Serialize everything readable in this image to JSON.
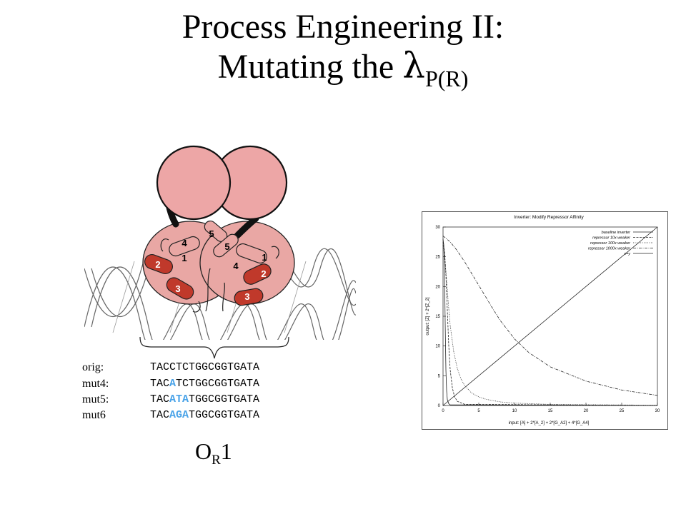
{
  "slide": {
    "title_line1": "Process Engineering II:",
    "title_line2_text": "Mutating the ",
    "title_line2_symbol": "λ",
    "title_line2_subscript": "P(R)"
  },
  "protein_figure": {
    "helix_labels": [
      "5",
      "5",
      "1",
      "1",
      "4",
      "4",
      "2",
      "2",
      "3",
      "3"
    ],
    "colors": {
      "domain_pink": "#e9a7a4",
      "helix_red": "#c0392b",
      "outline": "#222222"
    }
  },
  "sequences": [
    {
      "label": "orig:",
      "pre": "TACCTCTGGCGGTGATA",
      "mut": "",
      "post": ""
    },
    {
      "label": "mut4:",
      "pre": "TAC",
      "mut": "A",
      "post": "TCTGGCGGTGATA"
    },
    {
      "label": "mut5:",
      "pre": "TAC",
      "mut": "ATA",
      "post": "TGGCGGTGATA"
    },
    {
      "label": "mut6",
      "pre": "TAC",
      "mut": "AGA",
      "post": "TGGCGGTGATA"
    }
  ],
  "operator_label": {
    "main": "O",
    "sub": "R",
    "num": "1"
  },
  "highlight_color": "#4aa3e8",
  "chart_data": {
    "type": "line",
    "title": "Inverter: Modify Repressor Affinity",
    "xlabel": "input: [A] + 2*[A_2] + 2*[G_A2] + 4*[G_A4]",
    "ylabel": "output: [Z] + 2*[Z_2]",
    "xlim": [
      0,
      30
    ],
    "ylim": [
      0,
      30
    ],
    "xticks": [
      0,
      5,
      10,
      15,
      20,
      25,
      30
    ],
    "yticks": [
      0,
      5,
      10,
      15,
      20,
      25,
      30
    ],
    "grid": false,
    "legend_position": "top-right",
    "series": [
      {
        "name": "baseline inverter",
        "x": [
          0,
          0.1,
          0.2,
          0.3,
          0.4,
          0.5,
          0.6,
          0.8,
          1.0,
          30
        ],
        "y": [
          28,
          27,
          23,
          14,
          6,
          2.5,
          1,
          0.3,
          0.1,
          0
        ]
      },
      {
        "name": "repressor  10x weaker",
        "x": [
          0,
          0.2,
          0.4,
          0.6,
          0.8,
          1.0,
          1.3,
          1.6,
          2.0,
          3.0,
          30
        ],
        "y": [
          27.5,
          26,
          22,
          16,
          10,
          6,
          3,
          1.5,
          0.7,
          0.2,
          0
        ]
      },
      {
        "name": "repressor  100x weaker",
        "x": [
          0,
          0.25,
          0.5,
          0.75,
          1,
          1.5,
          2,
          2.5,
          3,
          4,
          5,
          6,
          8,
          10,
          15,
          30
        ],
        "y": [
          27,
          25,
          21,
          17,
          13.5,
          9,
          6.2,
          4.5,
          3.4,
          2.1,
          1.45,
          1.05,
          0.6,
          0.4,
          0.18,
          0.05
        ]
      },
      {
        "name": "repressor 1000x weaker",
        "x": [
          0,
          1,
          2,
          3,
          4,
          5,
          6,
          7,
          8,
          10,
          12,
          15,
          20,
          25,
          30
        ],
        "y": [
          28.5,
          27.5,
          26,
          24.2,
          22.2,
          20.2,
          18.2,
          16.2,
          14.3,
          11.2,
          8.9,
          6.5,
          4.1,
          2.6,
          1.7
        ]
      },
      {
        "name": "x=y",
        "x": [
          0,
          30
        ],
        "y": [
          0,
          30
        ]
      }
    ]
  }
}
